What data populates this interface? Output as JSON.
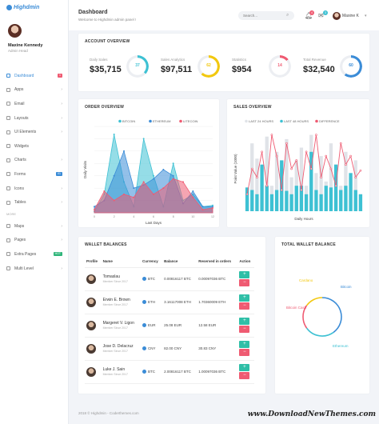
{
  "brand": {
    "name": "Highdmin"
  },
  "user": {
    "name": "Maxine Kennedy",
    "role": "Admin Head",
    "short": "Maxine K"
  },
  "sidebar": {
    "items": [
      {
        "label": "Dashboard",
        "icon": "dashboard-icon",
        "badge": "1",
        "badge_color": "#ef5b72",
        "active": true
      },
      {
        "label": "Apps",
        "icon": "apps-icon",
        "chevron": true
      },
      {
        "label": "Email",
        "icon": "email-icon",
        "chevron": true
      },
      {
        "label": "Layouts",
        "icon": "layouts-icon",
        "chevron": true
      },
      {
        "label": "UI Elements",
        "icon": "ui-elements-icon",
        "chevron": true
      },
      {
        "label": "Widgets",
        "icon": "widgets-icon"
      },
      {
        "label": "Charts",
        "icon": "charts-icon",
        "chevron": true
      },
      {
        "label": "Forms",
        "icon": "forms-icon",
        "badge": "01",
        "badge_color": "#3b8cd7"
      },
      {
        "label": "Icons",
        "icon": "icons-icon",
        "chevron": true
      },
      {
        "label": "Tables",
        "icon": "tables-icon",
        "chevron": true
      },
      {
        "section": "MORE"
      },
      {
        "label": "Maps",
        "icon": "maps-icon",
        "chevron": true
      },
      {
        "label": "Pages",
        "icon": "pages-icon",
        "chevron": true
      },
      {
        "label": "Extra Pages",
        "icon": "extra-pages-icon",
        "badge": "HOT",
        "badge_color": "#2fb57a"
      },
      {
        "label": "Multi Level",
        "icon": "multi-level-icon",
        "chevron": true
      }
    ]
  },
  "header": {
    "title": "Dashboard",
    "welcome": "Welcome to Highdmin admin panel !",
    "search_placeholder": "Search...",
    "notif_count": "4",
    "msg_count": "3"
  },
  "overview": {
    "title": "ACCOUNT OVERVIEW",
    "stats": [
      {
        "label": "Daily Sales",
        "value": "$35,715",
        "ring": "37",
        "color": "#3ec1d3",
        "pct": 0.37
      },
      {
        "label": "Sales Analytics",
        "value": "$97,511",
        "ring": "62",
        "color": "#f2c80f",
        "pct": 0.62
      },
      {
        "label": "Statistics",
        "value": "$954",
        "ring": "14",
        "color": "#ef5b72",
        "pct": 0.14
      },
      {
        "label": "Total Revenue",
        "value": "$32,540",
        "ring": "60",
        "color": "#3b8cd7",
        "pct": 0.6
      }
    ]
  },
  "order_overview": {
    "title": "ORDER OVERVIEW"
  },
  "sales_overview": {
    "title": "SALES OVERVIEW"
  },
  "wallet": {
    "title": "WALLET BALANCES",
    "headers": [
      "Profile",
      "Name",
      "Currency",
      "Balance",
      "Reserved in orders",
      "Action"
    ],
    "rows": [
      {
        "name": "Tomaslau",
        "since": "Member Since 2017",
        "currency": "BTC",
        "balance": "0.00816117 BTC",
        "reserved": "0.00097036 BTC"
      },
      {
        "name": "Erwin E. Brown",
        "since": "Member Since 2017",
        "currency": "ETH",
        "balance": "3.16117008 ETH",
        "reserved": "1.70360009 ETH"
      },
      {
        "name": "Margeret V. Ligon",
        "since": "Member Since 2017",
        "currency": "EUR",
        "balance": "25.08 EUR",
        "reserved": "12.58 EUR"
      },
      {
        "name": "Jose D. Delacruz",
        "since": "Member Since 2017",
        "currency": "CNY",
        "balance": "82.00 CNY",
        "reserved": "30.83 CNY"
      },
      {
        "name": "Luke J. Sain",
        "since": "Member Since 2017",
        "currency": "BTC",
        "balance": "2.00816117 BTC",
        "reserved": "1.00097036 BTC"
      }
    ]
  },
  "total_wallet": {
    "title": "TOTAL WALLET BALANCE"
  },
  "footer": "2018 © Highdmin - Coderthemes.com",
  "watermark": "www.DownloadNewThemes.com",
  "chart_data": [
    {
      "type": "area",
      "title": "ORDER OVERVIEW",
      "xlabel": "Last Days",
      "ylabel": "Daily Visits",
      "x": [
        0,
        1,
        2,
        3,
        4,
        5,
        6,
        7,
        8,
        9,
        10,
        11,
        12
      ],
      "ylim": [
        0,
        140
      ],
      "series": [
        {
          "name": "BITCOIN",
          "color": "#3ec1d3",
          "values": [
            2,
            30,
            127,
            50,
            10,
            120,
            60,
            10,
            80,
            20,
            30,
            10,
            12
          ]
        },
        {
          "name": "ETHEREUM",
          "color": "#3b8cd7",
          "values": [
            10,
            20,
            60,
            100,
            40,
            45,
            55,
            70,
            60,
            15,
            35,
            10,
            10
          ]
        },
        {
          "name": "LITECOIN",
          "color": "#ef5b72",
          "values": [
            5,
            35,
            20,
            30,
            25,
            50,
            30,
            40,
            55,
            50,
            25,
            5,
            8
          ]
        }
      ]
    },
    {
      "type": "bar",
      "title": "SALES OVERVIEW",
      "xlabel": "Daily Hours",
      "ylabel": "Point Value (1000)",
      "ylim": [
        0,
        1000
      ],
      "series": [
        {
          "name": "LAST 24 HOURS",
          "color": "#e0e3e8",
          "values": [
            150,
            800,
            620,
            400,
            880,
            300,
            700,
            500,
            850,
            400,
            600,
            750,
            300,
            900,
            450,
            650,
            350,
            800,
            550,
            300,
            700,
            400,
            600,
            200
          ]
        },
        {
          "name": "LAST 48 HOURS",
          "color": "#3ec1d3",
          "values": [
            280,
            250,
            200,
            550,
            300,
            200,
            250,
            600,
            240,
            200,
            300,
            300,
            200,
            700,
            250,
            200,
            300,
            280,
            550,
            250,
            300,
            450,
            250,
            200
          ]
        },
        {
          "name": "DIFFERENCE",
          "color": "#ef5b72",
          "values": [
            200,
            500,
            400,
            700,
            300,
            900,
            650,
            250,
            800,
            500,
            600,
            250,
            700,
            500,
            900,
            400,
            650,
            500,
            300,
            800,
            550,
            650,
            400,
            480
          ]
        }
      ]
    },
    {
      "type": "pie",
      "title": "TOTAL WALLET BALANCE",
      "categories": [
        "Bitcoin",
        "Ethereum",
        "Bitcoin Cash",
        "Cardano"
      ],
      "values": [
        40,
        25,
        20,
        15
      ],
      "colors": [
        "#3b8cd7",
        "#3ec1d3",
        "#ef5b72",
        "#f2c80f"
      ]
    }
  ]
}
